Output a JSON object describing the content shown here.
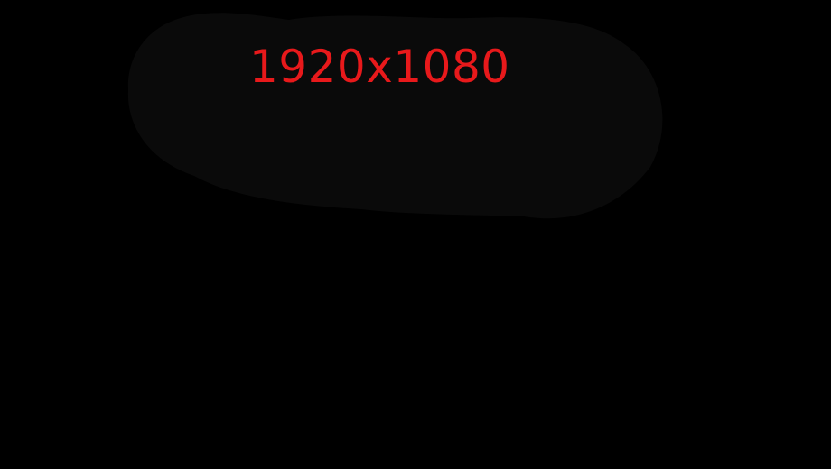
{
  "colors": {
    "background": "#000000",
    "blob": "#0a0a0a",
    "label": "#e8191b"
  },
  "resolution_label": "1920x1080"
}
